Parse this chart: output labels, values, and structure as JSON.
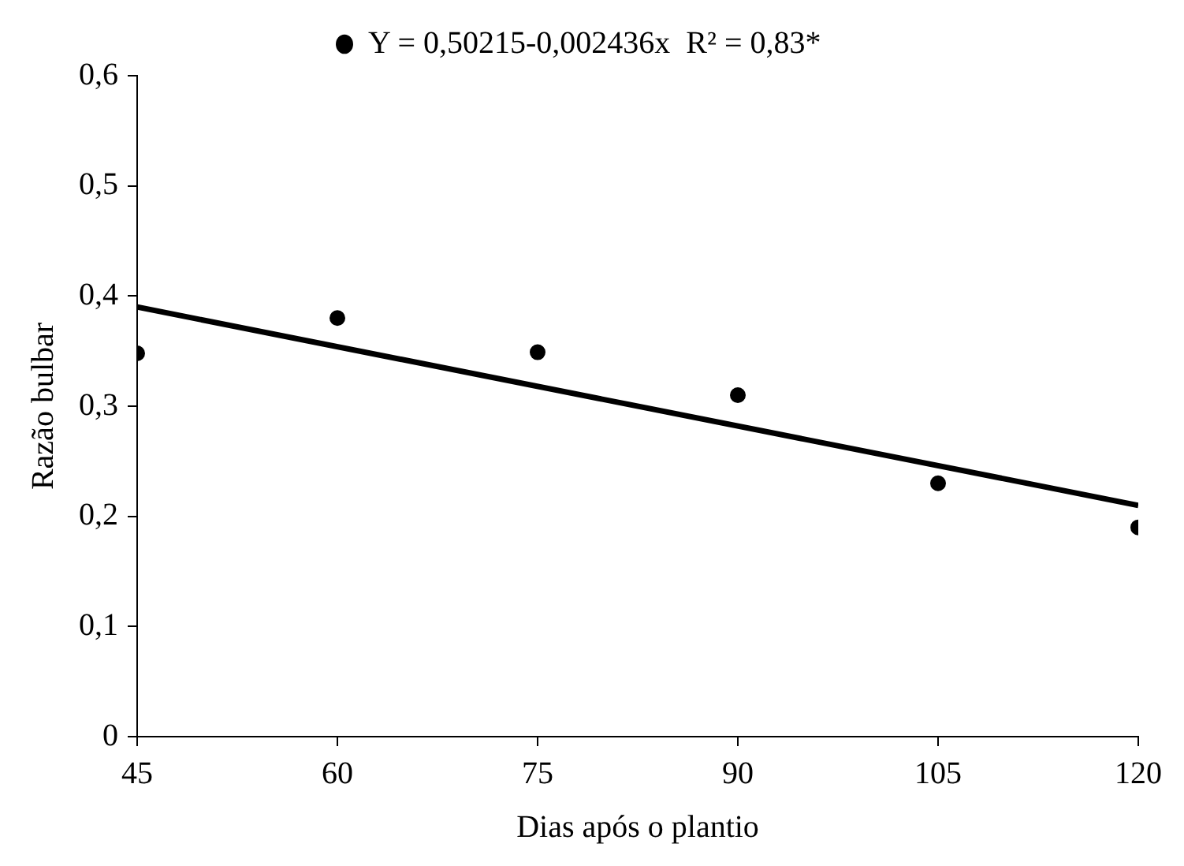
{
  "chart_data": {
    "type": "scatter",
    "xlabel": "Dias após o plantio",
    "ylabel": "Razão bulbar",
    "series": [
      {
        "name": "Y = 0,50215-0,002436x  R² = 0,83*",
        "type": "scatter",
        "marker": "circle",
        "color": "#000000",
        "x": [
          45,
          60,
          75,
          90,
          105,
          120
        ],
        "values": [
          0.348,
          0.38,
          0.349,
          0.31,
          0.23,
          0.19
        ]
      },
      {
        "type": "line",
        "marker": "none",
        "color": "#000000",
        "x": [
          45,
          120
        ],
        "values": [
          0.39,
          0.21
        ]
      }
    ],
    "xlim": [
      45,
      120
    ],
    "xticks": [
      45,
      60,
      75,
      90,
      105,
      120
    ],
    "ylim": [
      0,
      0.6
    ],
    "yticks": [
      0,
      {
        "value": 0.1,
        "label": "0,1"
      },
      {
        "value": 0.2,
        "label": "0,2"
      },
      {
        "value": 0.3,
        "label": "0,3"
      },
      {
        "value": 0.4,
        "label": "0,4"
      },
      {
        "value": 0.5,
        "label": "0,5"
      },
      {
        "value": 0.6,
        "label": "0,6"
      }
    ],
    "grid": false,
    "legend": "top"
  }
}
